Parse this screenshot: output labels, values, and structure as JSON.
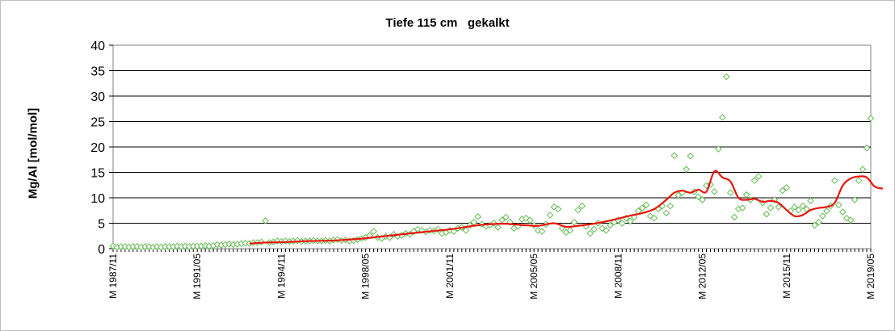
{
  "chart_data": {
    "type": "scatter",
    "title": "Tiefe 115 cm   gekalkt",
    "xlabel": "",
    "ylabel": "Mg/Al [mol/mol]",
    "ylim": [
      0,
      40
    ],
    "yticks": [
      0,
      5,
      10,
      15,
      20,
      25,
      30,
      35,
      40
    ],
    "xlim": [
      "1987-11",
      "2019-05"
    ],
    "xtick_labels": [
      {
        "label": "M 1987/11",
        "date": "1987-11"
      },
      {
        "label": "M 1991/05",
        "date": "1991-05"
      },
      {
        "label": "M 1994/11",
        "date": "1994-11"
      },
      {
        "label": "M 1998/05",
        "date": "1998-05"
      },
      {
        "label": "M 2001/11",
        "date": "2001-11"
      },
      {
        "label": "M 2005/05",
        "date": "2005-05"
      },
      {
        "label": "M 2008/11",
        "date": "2008-11"
      },
      {
        "label": "M 2012/05",
        "date": "2012-05"
      },
      {
        "label": "M 2015/11",
        "date": "2015-11"
      },
      {
        "label": "M 2019/05",
        "date": "2019-05"
      }
    ],
    "grid": "horizontal",
    "legend": "none",
    "series": [
      {
        "style": "scatter",
        "marker": "diamond-open",
        "color": "#66bb55",
        "points": [
          [
            "1987-11",
            0.5
          ],
          [
            "1988-01",
            0.3
          ],
          [
            "1988-03",
            0.4
          ],
          [
            "1988-05",
            0.4
          ],
          [
            "1988-07",
            0.3
          ],
          [
            "1988-09",
            0.4
          ],
          [
            "1988-11",
            0.4
          ],
          [
            "1989-01",
            0.3
          ],
          [
            "1989-03",
            0.4
          ],
          [
            "1989-05",
            0.4
          ],
          [
            "1989-07",
            0.3
          ],
          [
            "1989-09",
            0.4
          ],
          [
            "1989-11",
            0.3
          ],
          [
            "1990-01",
            0.4
          ],
          [
            "1990-03",
            0.4
          ],
          [
            "1990-05",
            0.4
          ],
          [
            "1990-07",
            0.5
          ],
          [
            "1990-09",
            0.4
          ],
          [
            "1990-11",
            0.5
          ],
          [
            "1991-01",
            0.4
          ],
          [
            "1991-03",
            0.5
          ],
          [
            "1991-05",
            0.5
          ],
          [
            "1991-07",
            0.5
          ],
          [
            "1991-09",
            0.6
          ],
          [
            "1991-11",
            0.5
          ],
          [
            "1992-01",
            0.6
          ],
          [
            "1992-03",
            0.8
          ],
          [
            "1992-05",
            0.7
          ],
          [
            "1992-07",
            0.8
          ],
          [
            "1992-09",
            0.9
          ],
          [
            "1992-11",
            0.8
          ],
          [
            "1993-01",
            0.9
          ],
          [
            "1993-03",
            1.0
          ],
          [
            "1993-05",
            1.1
          ],
          [
            "1993-07",
            1.0
          ],
          [
            "1993-09",
            1.2
          ],
          [
            "1993-11",
            1.2
          ],
          [
            "1994-01",
            1.3
          ],
          [
            "1994-03",
            5.5
          ],
          [
            "1994-05",
            1.2
          ],
          [
            "1994-07",
            1.3
          ],
          [
            "1994-09",
            1.5
          ],
          [
            "1994-11",
            1.4
          ],
          [
            "1995-01",
            1.5
          ],
          [
            "1995-03",
            1.4
          ],
          [
            "1995-05",
            1.5
          ],
          [
            "1995-07",
            1.6
          ],
          [
            "1995-09",
            1.4
          ],
          [
            "1995-11",
            1.5
          ],
          [
            "1996-01",
            1.5
          ],
          [
            "1996-03",
            1.6
          ],
          [
            "1996-05",
            1.5
          ],
          [
            "1996-07",
            1.5
          ],
          [
            "1996-09",
            1.6
          ],
          [
            "1996-11",
            1.5
          ],
          [
            "1997-01",
            1.7
          ],
          [
            "1997-03",
            1.8
          ],
          [
            "1997-05",
            1.6
          ],
          [
            "1997-07",
            1.7
          ],
          [
            "1997-09",
            1.5
          ],
          [
            "1997-11",
            1.6
          ],
          [
            "1998-01",
            1.8
          ],
          [
            "1998-03",
            2.0
          ],
          [
            "1998-05",
            2.2
          ],
          [
            "1998-07",
            2.6
          ],
          [
            "1998-09",
            3.4
          ],
          [
            "1998-11",
            2.2
          ],
          [
            "1999-01",
            2.0
          ],
          [
            "1999-03",
            2.4
          ],
          [
            "1999-05",
            2.2
          ],
          [
            "1999-07",
            2.8
          ],
          [
            "1999-09",
            2.4
          ],
          [
            "1999-11",
            2.6
          ],
          [
            "2000-01",
            3.0
          ],
          [
            "2000-03",
            2.8
          ],
          [
            "2000-05",
            3.4
          ],
          [
            "2000-07",
            3.8
          ],
          [
            "2000-09",
            3.6
          ],
          [
            "2000-11",
            3.3
          ],
          [
            "2001-01",
            3.6
          ],
          [
            "2001-03",
            3.5
          ],
          [
            "2001-05",
            3.8
          ],
          [
            "2001-07",
            3.0
          ],
          [
            "2001-09",
            3.2
          ],
          [
            "2001-11",
            3.6
          ],
          [
            "2002-01",
            3.4
          ],
          [
            "2002-03",
            4.0
          ],
          [
            "2002-05",
            4.2
          ],
          [
            "2002-07",
            3.6
          ],
          [
            "2002-09",
            4.6
          ],
          [
            "2002-11",
            5.2
          ],
          [
            "2003-01",
            6.3
          ],
          [
            "2003-03",
            4.8
          ],
          [
            "2003-05",
            4.4
          ],
          [
            "2003-07",
            4.6
          ],
          [
            "2003-09",
            5.0
          ],
          [
            "2003-11",
            4.2
          ],
          [
            "2004-01",
            5.6
          ],
          [
            "2004-03",
            6.2
          ],
          [
            "2004-05",
            5.2
          ],
          [
            "2004-07",
            4.0
          ],
          [
            "2004-09",
            4.4
          ],
          [
            "2004-11",
            5.8
          ],
          [
            "2005-01",
            6.0
          ],
          [
            "2005-03",
            5.6
          ],
          [
            "2005-05",
            4.6
          ],
          [
            "2005-07",
            3.6
          ],
          [
            "2005-09",
            3.4
          ],
          [
            "2005-11",
            4.8
          ],
          [
            "2006-01",
            6.6
          ],
          [
            "2006-03",
            8.2
          ],
          [
            "2006-05",
            7.8
          ],
          [
            "2006-07",
            4.0
          ],
          [
            "2006-09",
            3.2
          ],
          [
            "2006-11",
            3.6
          ],
          [
            "2007-01",
            5.2
          ],
          [
            "2007-03",
            7.6
          ],
          [
            "2007-05",
            8.4
          ],
          [
            "2007-07",
            4.4
          ],
          [
            "2007-09",
            3.0
          ],
          [
            "2007-11",
            3.8
          ],
          [
            "2008-01",
            5.0
          ],
          [
            "2008-03",
            4.0
          ],
          [
            "2008-05",
            3.6
          ],
          [
            "2008-07",
            4.6
          ],
          [
            "2008-09",
            5.2
          ],
          [
            "2008-11",
            5.6
          ],
          [
            "2009-01",
            5.0
          ],
          [
            "2009-03",
            6.0
          ],
          [
            "2009-05",
            5.4
          ],
          [
            "2009-07",
            6.2
          ],
          [
            "2009-09",
            7.4
          ],
          [
            "2009-11",
            8.0
          ],
          [
            "2010-01",
            8.6
          ],
          [
            "2010-03",
            6.4
          ],
          [
            "2010-05",
            6.0
          ],
          [
            "2010-07",
            7.8
          ],
          [
            "2010-09",
            8.4
          ],
          [
            "2010-11",
            7.0
          ],
          [
            "2011-01",
            8.4
          ],
          [
            "2011-03",
            18.3
          ],
          [
            "2011-05",
            10.5
          ],
          [
            "2011-07",
            11.0
          ],
          [
            "2011-09",
            15.6
          ],
          [
            "2011-11",
            18.2
          ],
          [
            "2012-01",
            11.2
          ],
          [
            "2012-03",
            10.2
          ],
          [
            "2012-05",
            9.6
          ],
          [
            "2012-07",
            12.4
          ],
          [
            "2012-09",
            12.6
          ],
          [
            "2012-11",
            11.2
          ],
          [
            "2013-01",
            19.6
          ],
          [
            "2013-03",
            25.8
          ],
          [
            "2013-05",
            33.8
          ],
          [
            "2013-07",
            11.0
          ],
          [
            "2013-09",
            6.2
          ],
          [
            "2013-11",
            7.8
          ],
          [
            "2014-01",
            8.0
          ],
          [
            "2014-03",
            10.6
          ],
          [
            "2014-05",
            9.6
          ],
          [
            "2014-07",
            13.4
          ],
          [
            "2014-09",
            14.2
          ],
          [
            "2014-11",
            9.0
          ],
          [
            "2015-01",
            6.8
          ],
          [
            "2015-03",
            8.0
          ],
          [
            "2015-05",
            9.6
          ],
          [
            "2015-07",
            8.2
          ],
          [
            "2015-09",
            11.4
          ],
          [
            "2015-11",
            12.0
          ],
          [
            "2016-01",
            7.4
          ],
          [
            "2016-03",
            8.2
          ],
          [
            "2016-05",
            7.6
          ],
          [
            "2016-07",
            8.4
          ],
          [
            "2016-09",
            7.8
          ],
          [
            "2016-11",
            9.4
          ],
          [
            "2017-01",
            4.6
          ],
          [
            "2017-03",
            5.2
          ],
          [
            "2017-05",
            6.4
          ],
          [
            "2017-07",
            7.4
          ],
          [
            "2017-09",
            8.4
          ],
          [
            "2017-11",
            13.4
          ],
          [
            "2018-01",
            8.6
          ],
          [
            "2018-03",
            7.2
          ],
          [
            "2018-05",
            6.0
          ],
          [
            "2018-07",
            5.6
          ],
          [
            "2018-09",
            9.6
          ],
          [
            "2018-11",
            13.4
          ],
          [
            "2019-01",
            15.6
          ],
          [
            "2019-03",
            19.8
          ],
          [
            "2019-05",
            25.6
          ]
        ]
      },
      {
        "style": "line",
        "color": "#e8160c",
        "points": [
          [
            "1993-07",
            1.0
          ],
          [
            "1994-03",
            1.2
          ],
          [
            "1995-01",
            1.3
          ],
          [
            "1996-01",
            1.5
          ],
          [
            "1997-01",
            1.6
          ],
          [
            "1998-01",
            1.9
          ],
          [
            "1999-01",
            2.4
          ],
          [
            "2000-01",
            2.9
          ],
          [
            "2001-01",
            3.4
          ],
          [
            "2002-01",
            3.9
          ],
          [
            "2003-01",
            4.6
          ],
          [
            "2004-01",
            4.9
          ],
          [
            "2005-01",
            4.6
          ],
          [
            "2005-07",
            4.5
          ],
          [
            "2006-03",
            5.0
          ],
          [
            "2006-09",
            4.3
          ],
          [
            "2007-03",
            4.5
          ],
          [
            "2007-09",
            4.8
          ],
          [
            "2008-03",
            5.2
          ],
          [
            "2008-11",
            5.9
          ],
          [
            "2009-05",
            6.5
          ],
          [
            "2009-11",
            7.0
          ],
          [
            "2010-05",
            7.8
          ],
          [
            "2010-11",
            9.6
          ],
          [
            "2011-03",
            11.0
          ],
          [
            "2011-07",
            11.4
          ],
          [
            "2011-11",
            11.0
          ],
          [
            "2012-03",
            11.6
          ],
          [
            "2012-07",
            11.2
          ],
          [
            "2012-11",
            15.2
          ],
          [
            "2013-03",
            14.0
          ],
          [
            "2013-07",
            13.2
          ],
          [
            "2013-11",
            10.0
          ],
          [
            "2014-03",
            9.6
          ],
          [
            "2014-07",
            9.8
          ],
          [
            "2014-11",
            9.2
          ],
          [
            "2015-03",
            9.4
          ],
          [
            "2015-07",
            9.0
          ],
          [
            "2015-11",
            7.6
          ],
          [
            "2016-03",
            6.4
          ],
          [
            "2016-07",
            6.6
          ],
          [
            "2016-11",
            7.6
          ],
          [
            "2017-03",
            8.0
          ],
          [
            "2017-07",
            8.2
          ],
          [
            "2017-11",
            9.0
          ],
          [
            "2018-03",
            12.4
          ],
          [
            "2018-07",
            13.8
          ],
          [
            "2018-11",
            14.2
          ],
          [
            "2019-03",
            14.0
          ],
          [
            "2019-07",
            12.2
          ],
          [
            "2019-11",
            11.8
          ]
        ]
      }
    ]
  }
}
